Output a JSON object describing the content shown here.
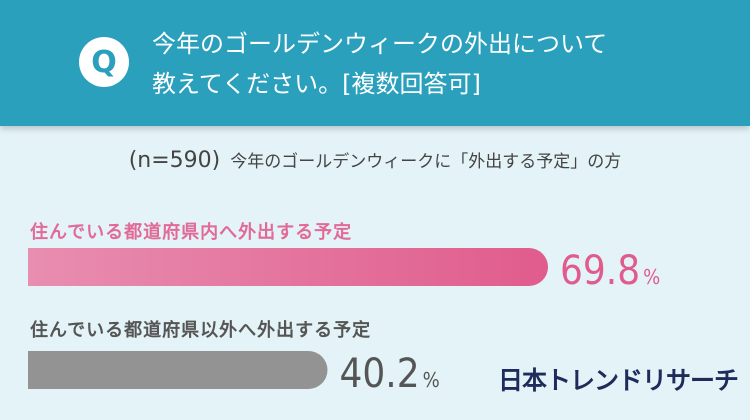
{
  "header": {
    "q_mark": "Q",
    "question_line1": "今年のゴールデンウィークの外出について",
    "question_line2": "教えてください。[複数回答可]"
  },
  "subtitle": {
    "sample": "(n=590)",
    "text": "今年のゴールデンウィークに「外出する予定」の方"
  },
  "chart_data": {
    "type": "bar",
    "orientation": "horizontal",
    "categories": [
      "住んでいる都道府県内へ外出する予定",
      "住んでいる都道府県以外へ外出する予定"
    ],
    "values": [
      69.8,
      40.2
    ],
    "value_labels": [
      "69.8",
      "40.2"
    ],
    "unit": "%",
    "xlim": [
      0,
      100
    ],
    "colors": [
      "#e3608e",
      "#939393"
    ]
  },
  "logo": {
    "text": "日本トレンドリサーチ"
  }
}
